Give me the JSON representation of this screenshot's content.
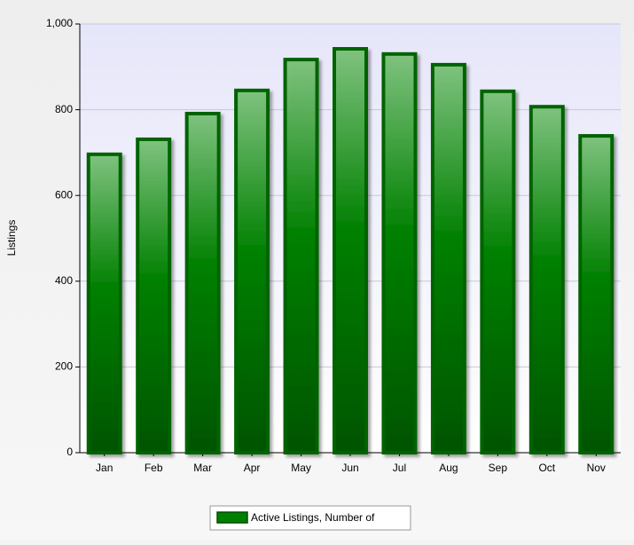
{
  "chart_data": {
    "type": "bar",
    "y_label": "Listings",
    "categories": [
      "Jan",
      "Feb",
      "Mar",
      "Apr",
      "May",
      "Jun",
      "Jul",
      "Aug",
      "Sep",
      "Oct",
      "Nov"
    ],
    "series": [
      {
        "name": "Active Listings, Number of",
        "color": "#008000",
        "values": [
          696,
          731,
          791,
          845,
          917,
          942,
          930,
          905,
          843,
          807,
          739
        ]
      }
    ],
    "ylim": [
      0,
      1000
    ],
    "yticks": [
      0,
      200,
      400,
      600,
      800,
      {
        "value": 1000,
        "label": "1,000"
      }
    ],
    "grid": true,
    "legend": "bottom"
  }
}
